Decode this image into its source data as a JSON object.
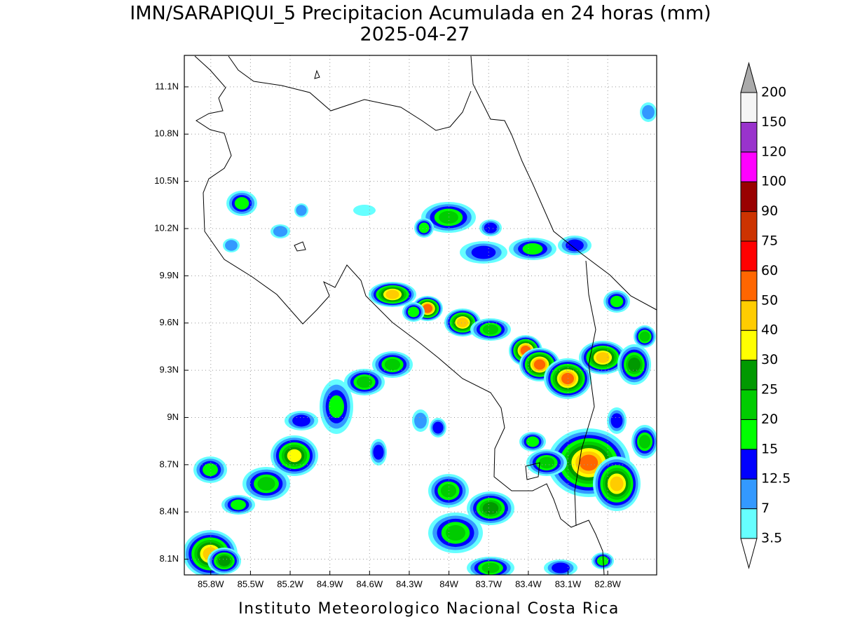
{
  "title": "IMN/SARAPIQUI_5 Precipitacion Acumulada en 24 horas (mm)",
  "subtitle": "2025-04-27",
  "footer": "Instituto Meteorologico Nacional Costa Rica",
  "map": {
    "xlim": [
      -86.0,
      -82.43
    ],
    "ylim": [
      8.0,
      11.3
    ],
    "xticks": [
      {
        "value": -85.8,
        "label": "85.8W"
      },
      {
        "value": -85.5,
        "label": "85.5W"
      },
      {
        "value": -85.2,
        "label": "85.2W"
      },
      {
        "value": -84.9,
        "label": "84.9W"
      },
      {
        "value": -84.6,
        "label": "84.6W"
      },
      {
        "value": -84.3,
        "label": "84.3W"
      },
      {
        "value": -84.0,
        "label": "84W"
      },
      {
        "value": -83.7,
        "label": "83.7W"
      },
      {
        "value": -83.4,
        "label": "83.4W"
      },
      {
        "value": -83.1,
        "label": "83.1W"
      },
      {
        "value": -82.8,
        "label": "82.8W"
      }
    ],
    "yticks": [
      {
        "value": 8.1,
        "label": "8.1N"
      },
      {
        "value": 8.4,
        "label": "8.4N"
      },
      {
        "value": 8.7,
        "label": "8.7N"
      },
      {
        "value": 9.0,
        "label": "9N"
      },
      {
        "value": 9.3,
        "label": "9.3N"
      },
      {
        "value": 9.6,
        "label": "9.6N"
      },
      {
        "value": 9.9,
        "label": "9.9N"
      },
      {
        "value": 10.2,
        "label": "10.2N"
      },
      {
        "value": 10.5,
        "label": "10.5N"
      },
      {
        "value": 10.8,
        "label": "10.8N"
      },
      {
        "value": 11.1,
        "label": "11.1N"
      }
    ],
    "grid": true
  },
  "colorbar": {
    "levels": [
      3.5,
      7,
      12.5,
      15,
      20,
      25,
      30,
      40,
      50,
      60,
      75,
      90,
      100,
      120,
      150,
      200
    ],
    "colors": [
      "#66ffff",
      "#3399ff",
      "#0000ff",
      "#00ff00",
      "#00cc00",
      "#009900",
      "#ffff00",
      "#ffcc00",
      "#ff6600",
      "#ff0000",
      "#cc3300",
      "#990000",
      "#ff00ff",
      "#9933cc",
      "#f5f5f5"
    ],
    "under_color": "#ffffff",
    "over_color": "#aaaaaa"
  }
}
